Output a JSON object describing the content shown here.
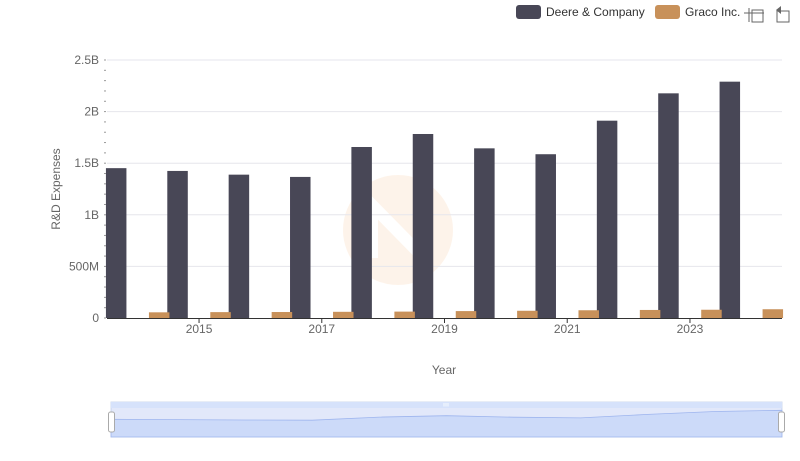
{
  "chart_data": {
    "type": "bar",
    "title": "",
    "xlabel": "Year",
    "ylabel": "R&D Expenses",
    "categories": [
      "2014",
      "2015",
      "2016",
      "2017",
      "2018",
      "2019",
      "2020",
      "2021",
      "2022",
      "2023",
      "2024"
    ],
    "x_tick_labels": [
      "2015",
      "2017",
      "2019",
      "2021",
      "2023"
    ],
    "y_tick_labels": [
      "0",
      "500M",
      "1B",
      "1.5B",
      "2B",
      "2.5B"
    ],
    "y_tick_values": [
      0,
      500000000,
      1000000000,
      1500000000,
      2000000000,
      2500000000
    ],
    "ylim": [
      0,
      2500000000
    ],
    "grid": true,
    "legend_position": "top-right",
    "series": [
      {
        "name": "Deere & Company",
        "color": "#484756",
        "values": [
          1452000000,
          1425000000,
          1389000000,
          1367000000,
          1657000000,
          1783000000,
          1644000000,
          1587000000,
          1912000000,
          2177000000,
          2290000000
        ]
      },
      {
        "name": "Graco Inc.",
        "color": "#c8915a",
        "values": [
          55000000,
          57000000,
          58000000,
          60000000,
          62000000,
          67000000,
          70000000,
          75000000,
          78000000,
          80000000,
          85000000
        ]
      }
    ]
  },
  "toolbar": {
    "icons": [
      "zoom-icon",
      "reset-icon"
    ]
  },
  "watermark": {
    "color": "#f5a65b"
  },
  "data_zoom": {
    "fill": "#d6e2fb",
    "line": "#a3b9ee"
  }
}
